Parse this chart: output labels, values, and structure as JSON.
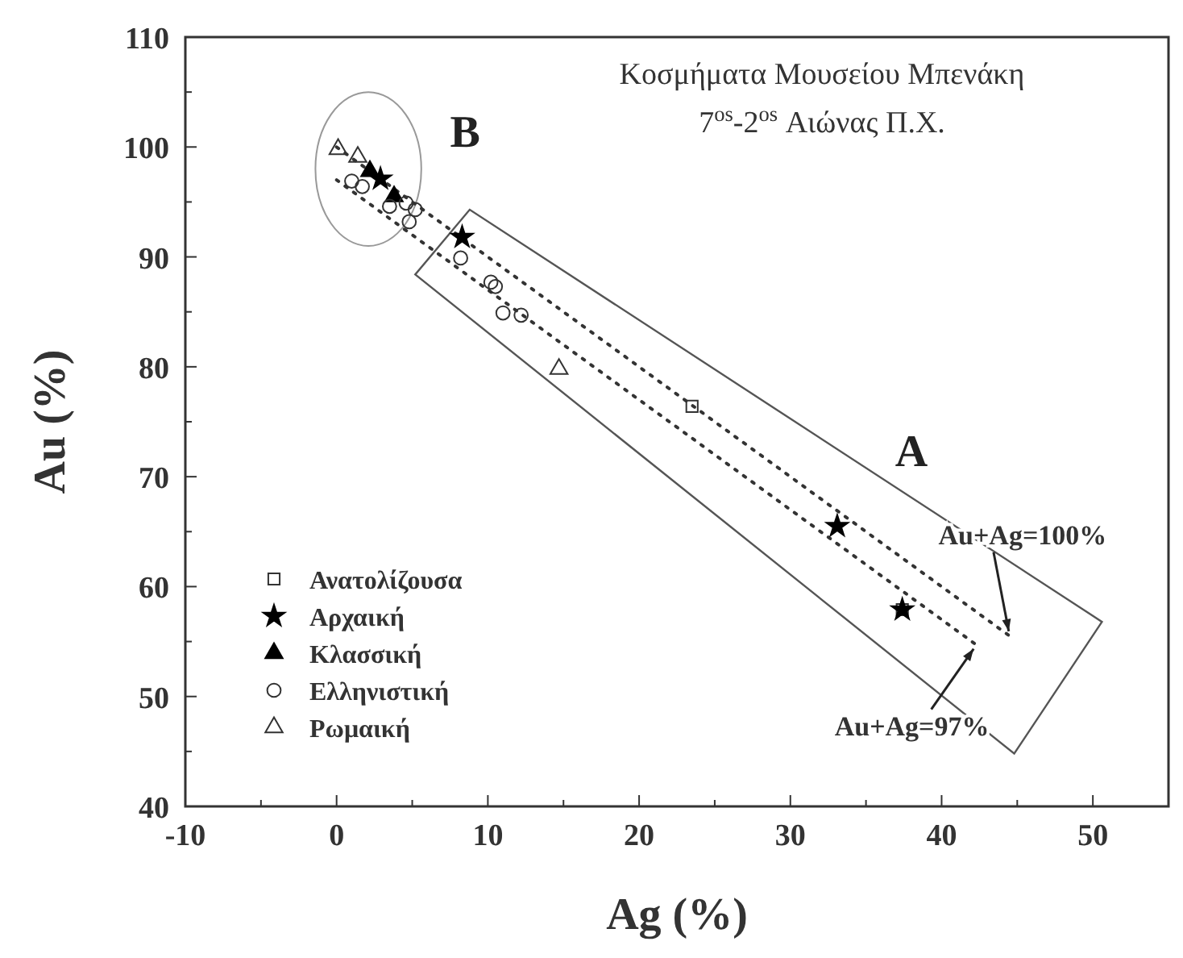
{
  "chart_data": {
    "type": "scatter",
    "title": "Κοσμήματα Μουσείου Μπενάκη",
    "subtitle": "7$^{os}$-2$^{os}$ Αιώνας Π.Χ.",
    "xlabel": "Ag (%)",
    "ylabel": "Au (%)",
    "xlim": [
      -10,
      55
    ],
    "xticks": [
      -10,
      {
        "value": -5,
        "label": null
      },
      0,
      {
        "value": 5,
        "label": null
      },
      10,
      {
        "value": 15,
        "label": null
      },
      20,
      {
        "value": 25,
        "label": null
      },
      30,
      {
        "value": 35,
        "label": null
      },
      40,
      {
        "value": 45,
        "label": null
      },
      50
    ],
    "ylim": [
      40,
      110
    ],
    "yticks": [
      40,
      {
        "value": 45,
        "label": null
      },
      50,
      {
        "value": 55,
        "label": null
      },
      60,
      {
        "value": 65,
        "label": null
      },
      70,
      {
        "value": 75,
        "label": null
      },
      80,
      {
        "value": 85,
        "label": null
      },
      90,
      {
        "value": 95,
        "label": null
      },
      100,
      {
        "value": 105,
        "label": null
      },
      110
    ],
    "legend": "bottom left",
    "grid": false,
    "series": [
      {
        "name": "Ανατολίζουσα",
        "marker": "square",
        "color": "#333333",
        "x": [
          23.5,
          37.4
        ],
        "values": [
          76.4,
          57.9
        ]
      },
      {
        "name": "Αρχαική",
        "marker": "star",
        "color": "#000000",
        "x": [
          2.9,
          8.3,
          33.1,
          37.4
        ],
        "values": [
          97.1,
          91.8,
          65.5,
          57.9
        ]
      },
      {
        "name": "Κλασσική",
        "marker": "triangle",
        "color": "#000000",
        "x": [
          2.2,
          3.8
        ],
        "values": [
          97.8,
          95.5
        ]
      },
      {
        "name": "Ελληνιστική",
        "marker": "circle",
        "color": "#333333",
        "x": [
          1.0,
          1.7,
          3.5,
          4.6,
          4.8,
          5.2,
          8.2,
          10.2,
          10.5,
          11.0,
          12.2
        ],
        "values": [
          96.9,
          96.4,
          94.6,
          94.9,
          93.2,
          94.3,
          89.9,
          87.7,
          87.3,
          84.9,
          84.7
        ]
      },
      {
        "name": "Ρωμαική",
        "marker": "triangle",
        "color": "#333333",
        "x": [
          0.1,
          1.4,
          14.7
        ],
        "values": [
          99.8,
          99.1,
          79.8
        ]
      },
      {
        "type": "line",
        "line_style": "dotted",
        "color": "#333333",
        "x": [
          0,
          44.5
        ],
        "values": [
          100,
          55.5
        ]
      },
      {
        "type": "line",
        "line_style": "dotted",
        "color": "#333333",
        "x": [
          0,
          42.3
        ],
        "values": [
          97,
          54.7
        ]
      }
    ],
    "annotations": [
      {
        "text": "Au+Ag=100%",
        "x": 44.5,
        "y": 55.5
      },
      {
        "text": "Au+Ag=97%",
        "x": 42.3,
        "y": 54.7
      },
      "A",
      "B"
    ]
  }
}
